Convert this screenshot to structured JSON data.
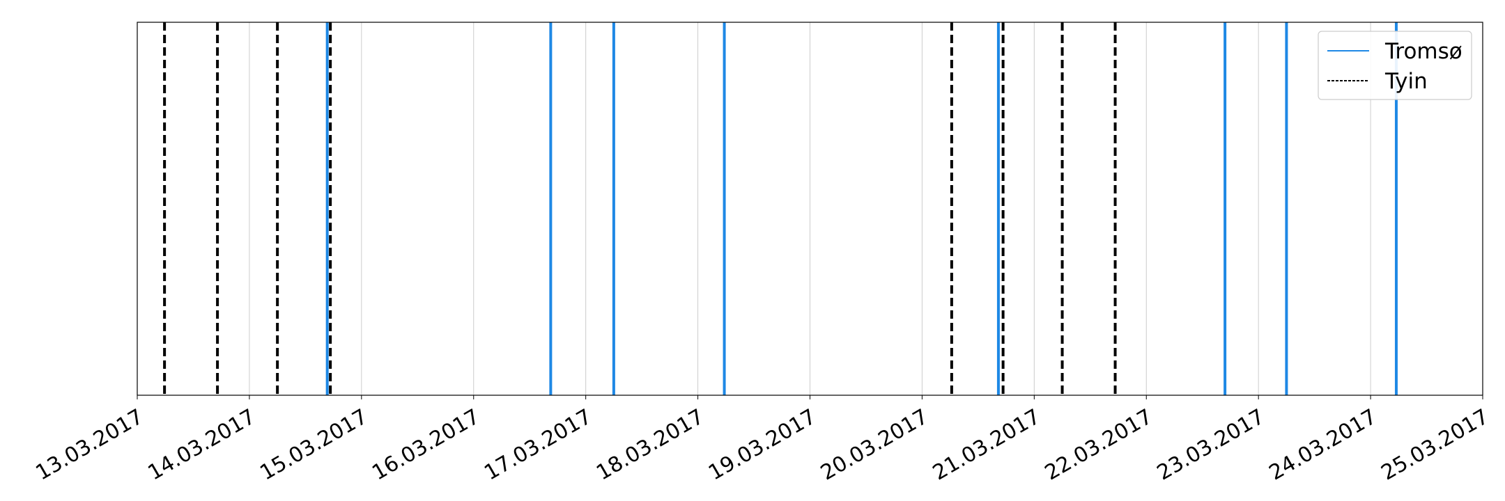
{
  "chart_data": {
    "type": "event-lines",
    "title": "",
    "xlabel": "",
    "ylabel": "",
    "x_axis": "date",
    "xlim": [
      "2017-03-13 00:00",
      "2017-03-25 00:00"
    ],
    "x_ticks": [
      "13.03.2017",
      "14.03.2017",
      "15.03.2017",
      "16.03.2017",
      "17.03.2017",
      "18.03.2017",
      "19.03.2017",
      "20.03.2017",
      "21.03.2017",
      "22.03.2017",
      "23.03.2017",
      "24.03.2017",
      "25.03.2017"
    ],
    "grid": "vertical",
    "legend_position": "top-right",
    "series": [
      {
        "name": "Tromsø",
        "color": "#1e88e5",
        "line_style": "solid",
        "events": [
          "2017-03-14 16:40",
          "2017-03-16 16:30",
          "2017-03-17 06:00",
          "2017-03-18 05:40",
          "2017-03-20 16:20",
          "2017-03-22 16:50",
          "2017-03-23 06:00",
          "2017-03-24 05:30"
        ]
      },
      {
        "name": "Tyin",
        "color": "#000000",
        "line_style": "dashed",
        "events": [
          "2017-03-13 05:50",
          "2017-03-13 17:10",
          "2017-03-14 06:00",
          "2017-03-14 17:20",
          "2017-03-20 06:20",
          "2017-03-20 17:20",
          "2017-03-21 06:00",
          "2017-03-21 17:20"
        ]
      }
    ]
  }
}
